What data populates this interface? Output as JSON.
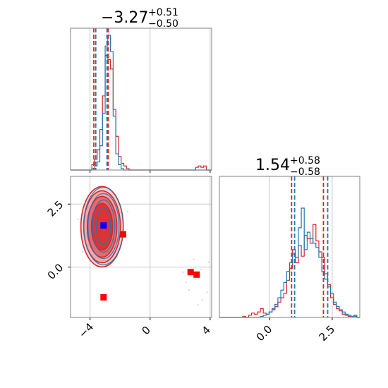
{
  "chart_data": {
    "type": "corner",
    "parameters": [
      {
        "median": "−3.27",
        "upper": "+0.51",
        "lower": "−0.50",
        "range": [
          -5.3,
          4.1
        ],
        "ticks": [
          -4,
          0,
          4
        ],
        "tick_labels": [
          "−4",
          "0",
          "4"
        ],
        "quantile_lines": {
          "red": [
            -3.75,
            -2.79
          ],
          "blue": [
            -3.62,
            -2.87
          ]
        }
      },
      {
        "median": "1.54",
        "upper": "+0.58",
        "lower": "−0.58",
        "range": [
          -2.0,
          3.6
        ],
        "ticks": [
          0,
          2.5
        ],
        "tick_labels": [
          "0.0",
          "2.5"
        ],
        "quantile_lines": {
          "red": [
            0.88,
            2.15
          ],
          "blue": [
            1.0,
            2.32
          ]
        }
      }
    ],
    "colors": {
      "red": "#d62728",
      "blue": "#1f77b4",
      "grid": "#c8c8c8",
      "marker_red": "#ff0000",
      "marker_blue": "#0000ff"
    },
    "marginal_0": {
      "bins": [
        -5.3,
        4.1
      ],
      "red": [
        0,
        0,
        0,
        0,
        0,
        0,
        0,
        0,
        0.04,
        0.08,
        0.15,
        0.3,
        0.55,
        0.85,
        0.82,
        0.75,
        0.45,
        0.25,
        0.1,
        0.05,
        0.03,
        0.01,
        0,
        0,
        0,
        0,
        0,
        0,
        0,
        0,
        0,
        0,
        0,
        0,
        0,
        0,
        0,
        0,
        0,
        0,
        0,
        0,
        0,
        0,
        0,
        0,
        0,
        0.02,
        0.03,
        0.02,
        0.03,
        0,
        0
      ],
      "blue": [
        0,
        0,
        0,
        0,
        0,
        0,
        0,
        0,
        0.01,
        0.03,
        0.06,
        0.18,
        0.42,
        0.92,
        1.0,
        0.88,
        0.4,
        0.12,
        0.04,
        0.01,
        0,
        0,
        0,
        0,
        0,
        0,
        0,
        0,
        0,
        0,
        0,
        0,
        0,
        0,
        0,
        0,
        0,
        0,
        0,
        0,
        0,
        0,
        0,
        0,
        0,
        0,
        0,
        0,
        0,
        0,
        0,
        0,
        0
      ]
    },
    "marginal_1": {
      "bins": [
        -2.0,
        3.6
      ],
      "red": [
        0,
        0,
        0,
        0,
        0,
        0,
        0,
        0,
        0.01,
        0,
        0.02,
        0.04,
        0.03,
        0.05,
        0.08,
        0.04,
        0.03,
        0.05,
        0.07,
        0.1,
        0.14,
        0.18,
        0.22,
        0.34,
        0.45,
        0.62,
        0.5,
        0.66,
        0.56,
        0.75,
        0.72,
        0.68,
        0.85,
        0.7,
        0.6,
        0.55,
        0.4,
        0.3,
        0.18,
        0.12,
        0.08,
        0.06,
        0.03,
        0.02,
        0.01,
        0.01,
        0.02,
        0
      ],
      "blue": [
        0,
        0,
        0,
        0,
        0,
        0,
        0,
        0,
        0,
        0,
        0,
        0,
        0,
        0,
        0.01,
        0.02,
        0.03,
        0.05,
        0.08,
        0.12,
        0.18,
        0.25,
        0.32,
        0.42,
        0.5,
        0.58,
        0.55,
        0.82,
        1.0,
        0.62,
        0.78,
        0.72,
        0.68,
        0.64,
        0.55,
        0.42,
        0.35,
        0.28,
        0.22,
        0.14,
        0.1,
        0.07,
        0.05,
        0.03,
        0.02,
        0.01,
        0.01,
        0
      ]
    },
    "joint": {
      "center": [
        -3.2,
        1.6
      ],
      "red_markers": [
        {
          "x": -1.8,
          "y": 1.3
        },
        {
          "x": 2.7,
          "y": -0.2
        },
        {
          "x": 3.1,
          "y": -0.3
        },
        {
          "x": -3.1,
          "y": -1.2
        }
      ],
      "blue_marker": {
        "x": -3.1,
        "y": 1.65
      },
      "outliers": [
        {
          "x": 3.0,
          "y": -0.5
        },
        {
          "x": 2.6,
          "y": -0.9
        },
        {
          "x": 3.4,
          "y": -0.1
        },
        {
          "x": 2.4,
          "y": -0.6
        },
        {
          "x": 3.8,
          "y": -1.0
        },
        {
          "x": 2.9,
          "y": 0.3
        },
        {
          "x": 3.5,
          "y": -1.3
        },
        {
          "x": 2.2,
          "y": -0.2
        },
        {
          "x": -4.8,
          "y": 1.9
        },
        {
          "x": -4.6,
          "y": 1.2
        },
        {
          "x": -1.5,
          "y": 2.2
        },
        {
          "x": -1.9,
          "y": 0.9
        },
        {
          "x": -4.5,
          "y": 0.6
        },
        {
          "x": -2.2,
          "y": 0.4
        },
        {
          "x": 3.9,
          "y": 0.2
        },
        {
          "x": 3.2,
          "y": -1.5
        }
      ]
    }
  }
}
